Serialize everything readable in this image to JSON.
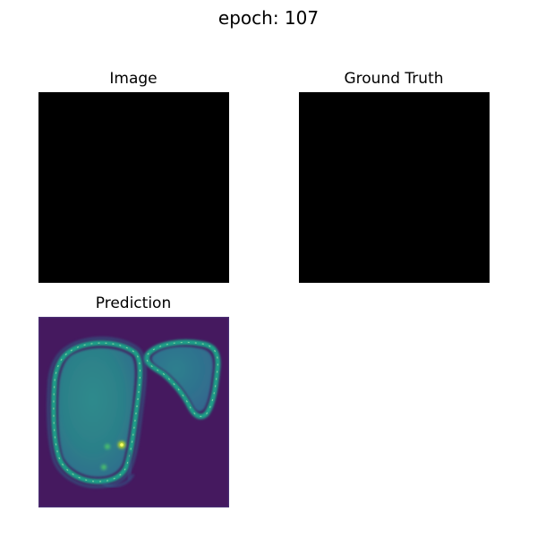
{
  "figure": {
    "suptitle": "epoch: 107"
  },
  "panels": [
    {
      "id": "image",
      "title": "Image",
      "fill": "#000000"
    },
    {
      "id": "ground-truth",
      "title": "Ground Truth",
      "fill": "#000000"
    },
    {
      "id": "prediction",
      "title": "Prediction",
      "colormap": "viridis",
      "background": "#45195f"
    }
  ]
}
